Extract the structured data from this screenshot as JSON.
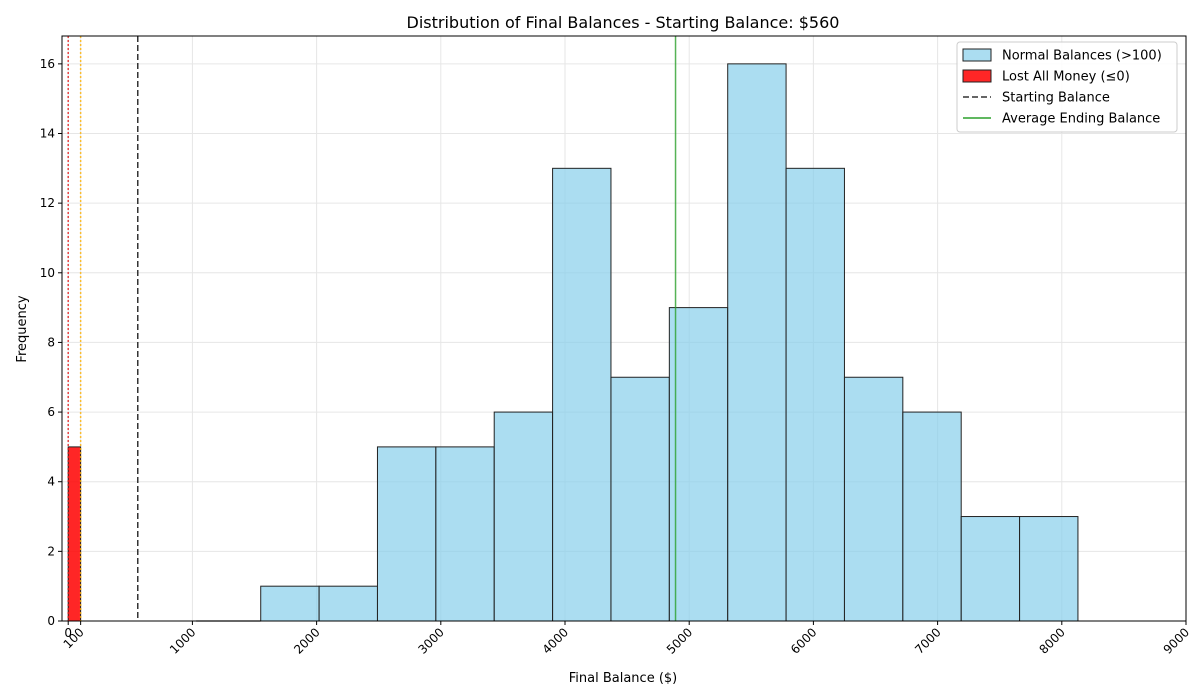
{
  "chart_data": {
    "type": "bar",
    "title": "Distribution of Final Balances - Starting Balance: $560",
    "xlabel": "Final Balance ($)",
    "ylabel": "Frequency",
    "xlim": [
      -50,
      9000
    ],
    "ylim": [
      0,
      16.8
    ],
    "grid": true,
    "legend_position": "top-right",
    "x_ticks": [
      0,
      100,
      1000,
      2000,
      3000,
      4000,
      5000,
      6000,
      7000,
      8000,
      9000
    ],
    "y_ticks": [
      0,
      2,
      4,
      6,
      8,
      10,
      12,
      14,
      16
    ],
    "series": [
      {
        "name": "Normal Balances (>100)",
        "color": "#87ceeb",
        "bins": [
          {
            "start": 1550,
            "end": 2020,
            "value": 1
          },
          {
            "start": 2020,
            "end": 2490,
            "value": 1
          },
          {
            "start": 2490,
            "end": 2960,
            "value": 5
          },
          {
            "start": 2960,
            "end": 3430,
            "value": 5
          },
          {
            "start": 3430,
            "end": 3900,
            "value": 6
          },
          {
            "start": 3900,
            "end": 4370,
            "value": 13
          },
          {
            "start": 4370,
            "end": 4840,
            "value": 7
          },
          {
            "start": 4840,
            "end": 5310,
            "value": 9
          },
          {
            "start": 5310,
            "end": 5780,
            "value": 16
          },
          {
            "start": 5780,
            "end": 6250,
            "value": 13
          },
          {
            "start": 6250,
            "end": 6720,
            "value": 7
          },
          {
            "start": 6720,
            "end": 7190,
            "value": 6
          },
          {
            "start": 7190,
            "end": 7660,
            "value": 3
          },
          {
            "start": 7660,
            "end": 8130,
            "value": 3
          }
        ],
        "zero_bins": [
          {
            "start": 1030,
            "end": 1550,
            "value": 0
          }
        ]
      },
      {
        "name": "Lost All Money (≤0)",
        "color": "#ff0000",
        "bins": [
          {
            "start": 0,
            "end": 100,
            "value": 5
          }
        ]
      }
    ],
    "reference_lines": [
      {
        "name": "Starting Balance",
        "x": 560,
        "color": "#333333",
        "style": "dashed",
        "in_legend": true
      },
      {
        "name": "Average Ending Balance",
        "x": 4890,
        "color": "#2ca02c",
        "style": "solid",
        "in_legend": true
      },
      {
        "name": "",
        "x": 0,
        "color": "#e41a1c",
        "style": "dotted",
        "in_legend": false
      },
      {
        "name": "",
        "x": 100,
        "color": "#ffb000",
        "style": "dotted",
        "in_legend": false
      }
    ]
  }
}
